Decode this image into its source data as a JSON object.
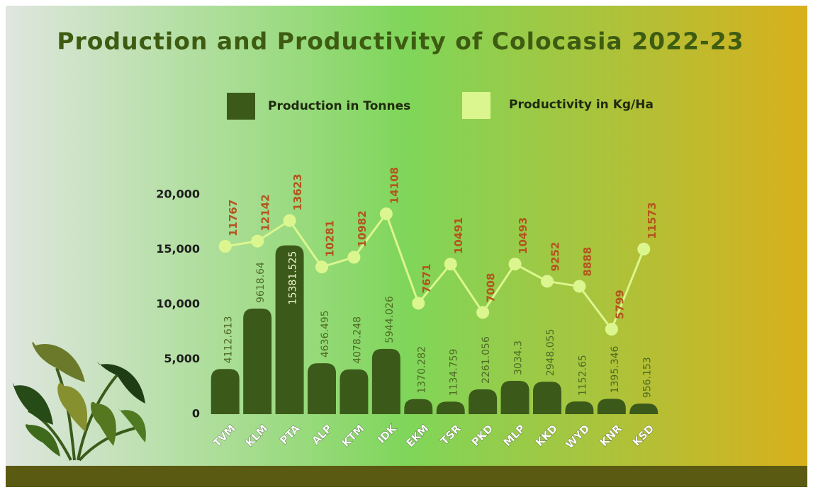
{
  "chart_data": {
    "type": "bar",
    "title": "Production and Productivity of Colocasia 2022-23",
    "categories": [
      "TVM",
      "KLM",
      "PTA",
      "ALP",
      "KTM",
      "IDK",
      "EKM",
      "TSR",
      "PKD",
      "MLP",
      "KKD",
      "WYD",
      "KNR",
      "KSD"
    ],
    "series": [
      {
        "name": "Production in Tonnes",
        "type": "bar",
        "color": "#3b5a1a",
        "values": [
          4112.613,
          9618.64,
          15381.525,
          4636.495,
          4078.248,
          5944.026,
          1370.282,
          1134.759,
          2261.056,
          3034.3,
          2948.055,
          1152.65,
          1395.346,
          956.153
        ]
      },
      {
        "name": "Productivity in Kg/Ha",
        "type": "line",
        "axis": "y2",
        "color": "#dcf68f",
        "values": [
          11767,
          12142,
          13623,
          10281,
          10982,
          14108,
          7671,
          10491,
          7008,
          10493,
          9252,
          8888,
          5799,
          11573
        ]
      }
    ],
    "ylim": [
      0,
      20000
    ],
    "yticks": [
      0,
      {
        "value": 5000,
        "label": "5,000"
      },
      {
        "value": 10000,
        "label": "10,000"
      },
      {
        "value": 15000,
        "label": "15,000"
      },
      {
        "value": 20000,
        "label": "20,000"
      }
    ],
    "y2lim": [
      -320,
      15490
    ]
  }
}
